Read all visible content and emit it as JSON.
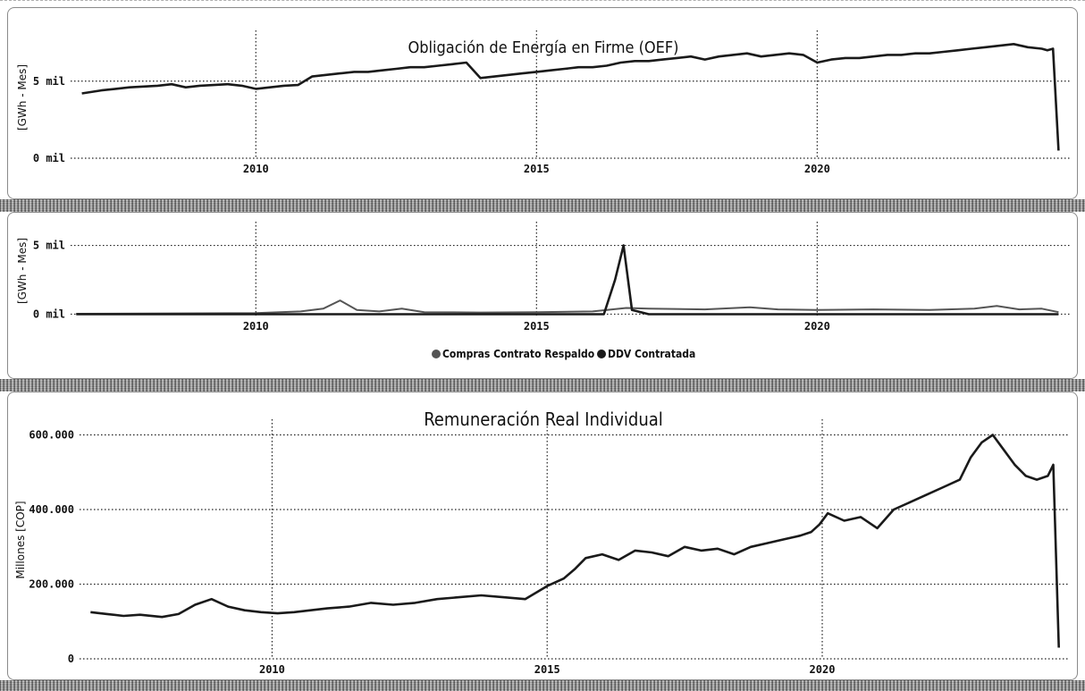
{
  "colors": {
    "series": "#1a1a1a",
    "series_light": "#555555",
    "grid": "#222222"
  },
  "chart_data": [
    {
      "type": "line",
      "title": "Obligación de Energía en Firme (OEF)",
      "xlabel": "",
      "ylabel": "[GWh - Mes]",
      "x_ticks": [
        "2010",
        "2015",
        "2020"
      ],
      "y_ticks": [
        {
          "value": 0,
          "label": "0 mil"
        },
        {
          "value": 5000,
          "label": "5 mil"
        }
      ],
      "xlim": [
        2006.7,
        2024.5
      ],
      "ylim": [
        0,
        8000
      ],
      "grid": true,
      "series": [
        {
          "x": [
            2006.9,
            2007.25,
            2007.5,
            2007.75,
            2008.0,
            2008.25,
            2008.5,
            2008.75,
            2009.0,
            2009.25,
            2009.5,
            2009.75,
            2010.0,
            2010.25,
            2010.5,
            2010.75,
            2011.0,
            2011.25,
            2011.5,
            2011.75,
            2012.0,
            2012.25,
            2012.5,
            2012.75,
            2013.0,
            2013.25,
            2013.5,
            2013.75,
            2014.0,
            2014.25,
            2014.5,
            2014.75,
            2015.0,
            2015.25,
            2015.5,
            2015.75,
            2016.0,
            2016.25,
            2016.5,
            2016.75,
            2017.0,
            2017.25,
            2017.5,
            2017.75,
            2018.0,
            2018.25,
            2018.5,
            2018.75,
            2019.0,
            2019.25,
            2019.5,
            2019.75,
            2020.0,
            2020.25,
            2020.5,
            2020.75,
            2021.0,
            2021.25,
            2021.5,
            2021.75,
            2022.0,
            2022.25,
            2022.5,
            2022.75,
            2023.0,
            2023.25,
            2023.5,
            2023.75,
            2024.0,
            2024.1,
            2024.2,
            2024.3
          ],
          "values": [
            4200,
            4400,
            4500,
            4600,
            4650,
            4700,
            4800,
            4600,
            4700,
            4750,
            4800,
            4700,
            4500,
            4600,
            4700,
            4750,
            5300,
            5400,
            5500,
            5600,
            5600,
            5700,
            5800,
            5900,
            5900,
            6000,
            6100,
            6200,
            5200,
            5300,
            5400,
            5500,
            5600,
            5700,
            5800,
            5900,
            5900,
            6000,
            6200,
            6300,
            6300,
            6400,
            6500,
            6600,
            6400,
            6600,
            6700,
            6800,
            6600,
            6700,
            6800,
            6700,
            6200,
            6400,
            6500,
            6500,
            6600,
            6700,
            6700,
            6800,
            6800,
            6900,
            7000,
            7100,
            7200,
            7300,
            7400,
            7200,
            7100,
            7000,
            7100,
            500
          ]
        }
      ]
    },
    {
      "type": "line",
      "title": "",
      "xlabel": "",
      "ylabel": "[GWh - Mes]",
      "x_ticks": [
        "2010",
        "2015",
        "2020"
      ],
      "y_ticks": [
        {
          "value": 0,
          "label": "0 mil"
        },
        {
          "value": 5000,
          "label": "5 mil"
        }
      ],
      "xlim": [
        2006.7,
        2024.5
      ],
      "ylim": [
        -100,
        6400
      ],
      "grid": true,
      "legend": [
        "Compras Contrato Respaldo",
        "DDV Contratada"
      ],
      "legend_position": "bottom",
      "series": [
        {
          "name": "Compras Contrato Respaldo",
          "x": [
            2006.8,
            2008.0,
            2009.0,
            2010.0,
            2010.8,
            2011.2,
            2011.5,
            2011.8,
            2012.2,
            2012.6,
            2013.0,
            2014.0,
            2015.0,
            2016.0,
            2016.6,
            2017.0,
            2018.0,
            2018.8,
            2019.3,
            2020.0,
            2021.0,
            2022.0,
            2022.8,
            2023.2,
            2023.6,
            2024.0,
            2024.3
          ],
          "values": [
            30,
            40,
            60,
            80,
            200,
            400,
            1000,
            300,
            200,
            400,
            150,
            120,
            150,
            200,
            450,
            400,
            350,
            500,
            350,
            300,
            350,
            300,
            400,
            600,
            350,
            400,
            150
          ]
        },
        {
          "name": "DDV Contratada",
          "x": [
            2006.8,
            2010.0,
            2014.0,
            2015.0,
            2016.0,
            2016.2,
            2016.4,
            2016.55,
            2016.7,
            2017.0,
            2018.0,
            2019.0,
            2020.0,
            2022.0,
            2023.0,
            2024.0,
            2024.3
          ],
          "values": [
            0,
            0,
            0,
            0,
            0,
            0,
            2500,
            5000,
            300,
            0,
            0,
            0,
            0,
            0,
            0,
            0,
            0
          ]
        }
      ]
    },
    {
      "type": "line",
      "title": "Remuneración Real Individual",
      "xlabel": "",
      "ylabel": "Millones [COP]",
      "x_ticks": [
        "2010",
        "2015",
        "2020"
      ],
      "y_ticks": [
        {
          "value": 0,
          "label": "0"
        },
        {
          "value": 200000,
          "label": "200.000"
        },
        {
          "value": 400000,
          "label": "400.000"
        },
        {
          "value": 600000,
          "label": "600.000"
        }
      ],
      "xlim": [
        2006.5,
        2024.5
      ],
      "ylim": [
        0,
        630000
      ],
      "grid": true,
      "series": [
        {
          "x": [
            2006.7,
            2007.0,
            2007.3,
            2007.6,
            2008.0,
            2008.3,
            2008.6,
            2008.9,
            2009.2,
            2009.5,
            2009.8,
            2010.1,
            2010.4,
            2010.7,
            2011.0,
            2011.4,
            2011.8,
            2012.2,
            2012.6,
            2013.0,
            2013.4,
            2013.8,
            2014.2,
            2014.6,
            2015.0,
            2015.3,
            2015.5,
            2015.7,
            2016.0,
            2016.3,
            2016.6,
            2016.9,
            2017.2,
            2017.5,
            2017.8,
            2018.1,
            2018.4,
            2018.7,
            2019.0,
            2019.3,
            2019.6,
            2019.8,
            2019.95,
            2020.1,
            2020.4,
            2020.7,
            2021.0,
            2021.3,
            2021.6,
            2021.9,
            2022.2,
            2022.5,
            2022.7,
            2022.9,
            2023.1,
            2023.3,
            2023.5,
            2023.7,
            2023.9,
            2024.1,
            2024.2,
            2024.3
          ],
          "values": [
            125000,
            120000,
            115000,
            118000,
            112000,
            120000,
            145000,
            160000,
            140000,
            130000,
            125000,
            122000,
            125000,
            130000,
            135000,
            140000,
            150000,
            145000,
            150000,
            160000,
            165000,
            170000,
            165000,
            160000,
            195000,
            215000,
            240000,
            270000,
            280000,
            265000,
            290000,
            285000,
            275000,
            300000,
            290000,
            295000,
            280000,
            300000,
            310000,
            320000,
            330000,
            340000,
            360000,
            390000,
            370000,
            380000,
            350000,
            400000,
            420000,
            440000,
            460000,
            480000,
            540000,
            580000,
            600000,
            560000,
            520000,
            490000,
            480000,
            490000,
            520000,
            30000
          ]
        }
      ]
    }
  ]
}
